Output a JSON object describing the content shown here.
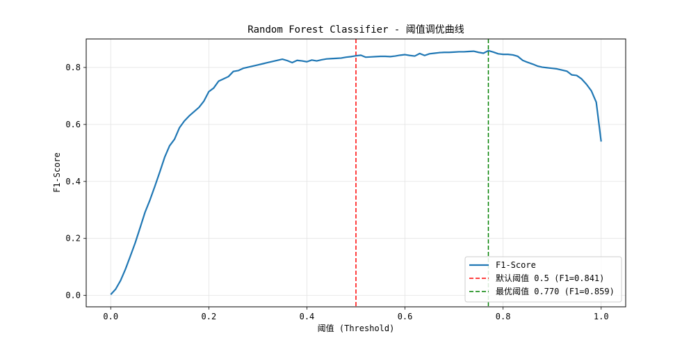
{
  "chart_data": {
    "type": "line",
    "title": "Random Forest Classifier - 阈值调优曲线",
    "xlabel": "阈值 (Threshold)",
    "ylabel": "F1-Score",
    "xlim": [
      -0.05,
      1.05
    ],
    "ylim": [
      -0.04,
      0.9
    ],
    "grid": true,
    "legend_position": "lower-right",
    "xticks": [
      0.0,
      0.2,
      0.4,
      0.6,
      0.8,
      1.0
    ],
    "xtick_labels": [
      "0.0",
      "0.2",
      "0.4",
      "0.6",
      "0.8",
      "1.0"
    ],
    "yticks": [
      0.0,
      0.2,
      0.4,
      0.6,
      0.8
    ],
    "ytick_labels": [
      "0.0",
      "0.2",
      "0.4",
      "0.6",
      "0.8"
    ],
    "series": [
      {
        "name": "F1-Score",
        "color": "#1f77b4",
        "x": [
          0.0,
          0.01,
          0.02,
          0.03,
          0.04,
          0.05,
          0.06,
          0.07,
          0.08,
          0.09,
          0.1,
          0.11,
          0.12,
          0.13,
          0.14,
          0.15,
          0.16,
          0.17,
          0.18,
          0.19,
          0.2,
          0.21,
          0.22,
          0.23,
          0.24,
          0.25,
          0.26,
          0.27,
          0.28,
          0.29,
          0.3,
          0.31,
          0.32,
          0.33,
          0.34,
          0.35,
          0.36,
          0.37,
          0.38,
          0.39,
          0.4,
          0.41,
          0.42,
          0.43,
          0.44,
          0.45,
          0.46,
          0.47,
          0.48,
          0.49,
          0.5,
          0.51,
          0.52,
          0.53,
          0.54,
          0.55,
          0.56,
          0.57,
          0.58,
          0.59,
          0.6,
          0.61,
          0.62,
          0.63,
          0.64,
          0.65,
          0.66,
          0.67,
          0.68,
          0.69,
          0.7,
          0.71,
          0.72,
          0.73,
          0.74,
          0.75,
          0.76,
          0.77,
          0.78,
          0.79,
          0.8,
          0.81,
          0.82,
          0.83,
          0.84,
          0.85,
          0.86,
          0.87,
          0.88,
          0.89,
          0.9,
          0.91,
          0.92,
          0.93,
          0.94,
          0.95,
          0.96,
          0.97,
          0.98,
          0.99,
          1.0
        ],
        "values": [
          0.003,
          0.022,
          0.052,
          0.092,
          0.138,
          0.185,
          0.238,
          0.292,
          0.335,
          0.383,
          0.433,
          0.485,
          0.525,
          0.548,
          0.588,
          0.612,
          0.63,
          0.645,
          0.66,
          0.682,
          0.715,
          0.728,
          0.752,
          0.76,
          0.768,
          0.786,
          0.789,
          0.797,
          0.801,
          0.805,
          0.809,
          0.813,
          0.817,
          0.821,
          0.825,
          0.829,
          0.824,
          0.817,
          0.825,
          0.823,
          0.82,
          0.826,
          0.823,
          0.827,
          0.83,
          0.831,
          0.832,
          0.833,
          0.836,
          0.838,
          0.841,
          0.843,
          0.836,
          0.837,
          0.838,
          0.839,
          0.839,
          0.838,
          0.84,
          0.843,
          0.845,
          0.842,
          0.84,
          0.849,
          0.842,
          0.848,
          0.85,
          0.852,
          0.853,
          0.853,
          0.854,
          0.855,
          0.855,
          0.856,
          0.857,
          0.853,
          0.85,
          0.859,
          0.854,
          0.848,
          0.846,
          0.846,
          0.844,
          0.839,
          0.825,
          0.818,
          0.812,
          0.805,
          0.801,
          0.799,
          0.797,
          0.795,
          0.791,
          0.787,
          0.774,
          0.772,
          0.76,
          0.741,
          0.718,
          0.678,
          0.54
        ]
      },
      {
        "name": "默认阈值 0.5 (F1=0.841)",
        "color": "#ff0000",
        "style": "dashed",
        "orientation": "vertical",
        "x_value": 0.5
      },
      {
        "name": "最优阈值 0.770 (F1=0.859)",
        "color": "#008000",
        "style": "dashed",
        "orientation": "vertical",
        "x_value": 0.77
      }
    ]
  }
}
